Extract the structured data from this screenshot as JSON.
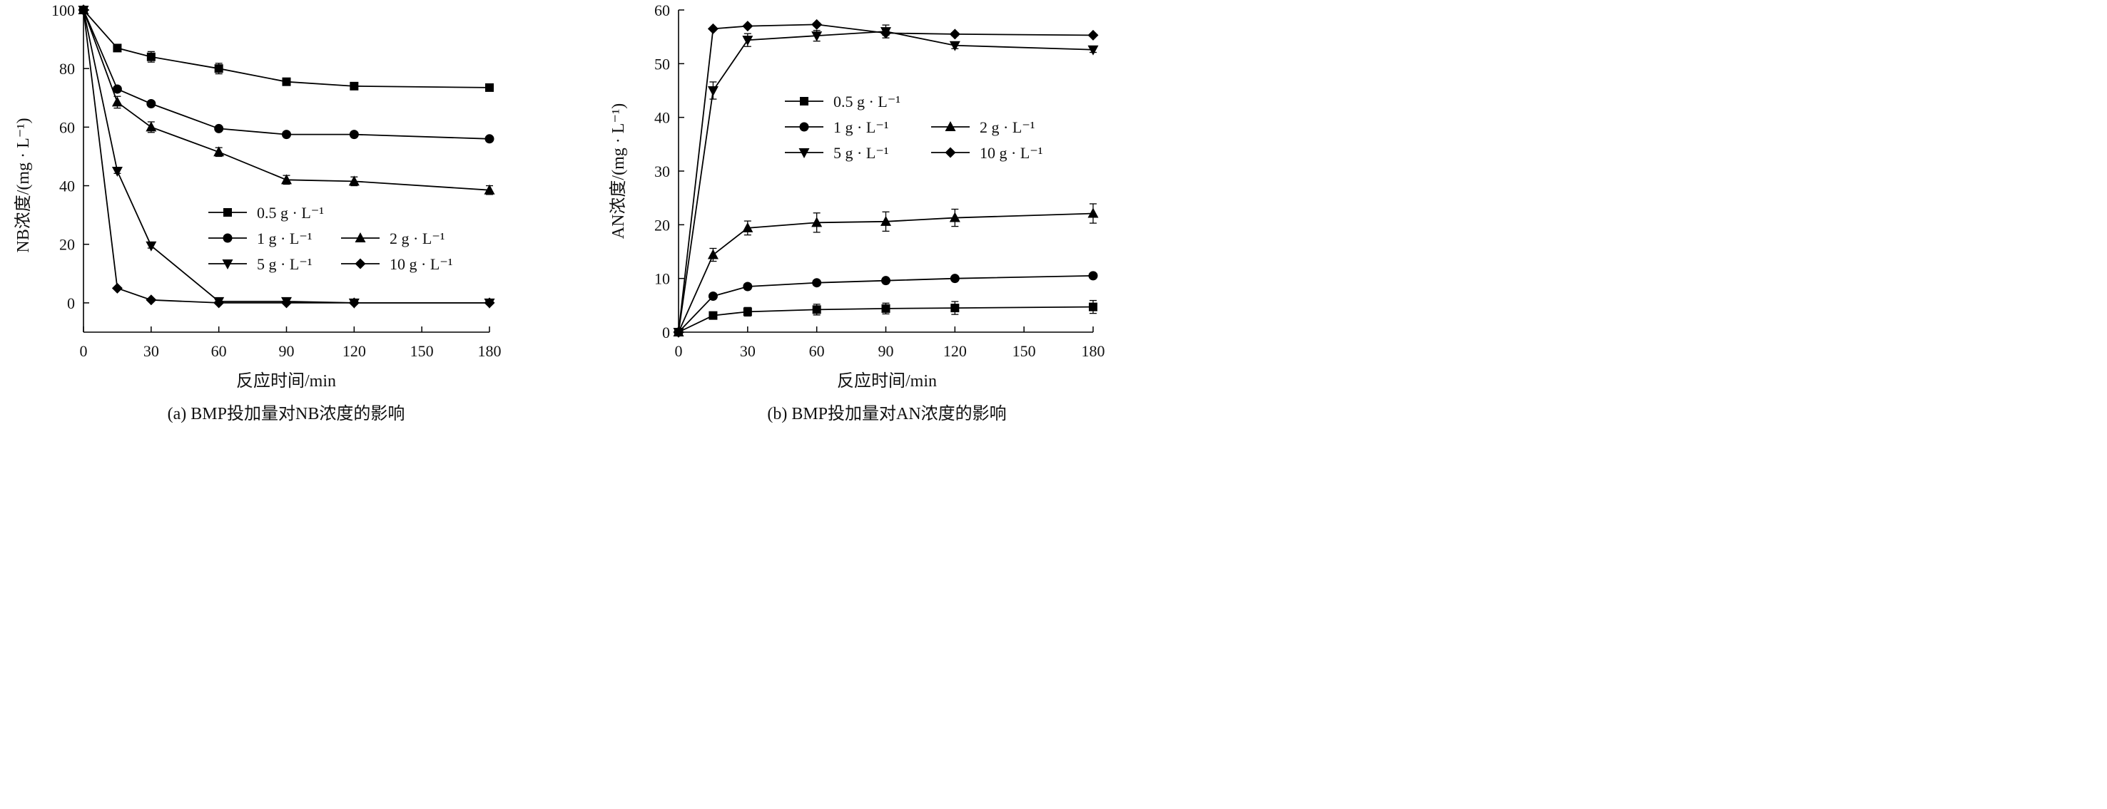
{
  "figures": [
    {
      "caption": "(a) BMP投加量对NB浓度的影响",
      "chart_data": {
        "type": "line",
        "xlabel": "反应时间/min",
        "ylabel": "NB浓度/(mg · L⁻¹)",
        "xlim": [
          0,
          180
        ],
        "ylim": [
          -10,
          100
        ],
        "xticks": [
          "0",
          "30",
          "60",
          "90",
          "120",
          "150",
          "180"
        ],
        "yticks": [
          "0",
          "20",
          "40",
          "60",
          "80",
          "100"
        ],
        "grid": false,
        "legend_position": "center-right",
        "x": [
          0,
          15,
          30,
          60,
          90,
          120,
          180
        ],
        "series": [
          {
            "name": "0.5 g · L⁻¹",
            "marker": "square",
            "values": [
              100,
              87,
              84,
              80,
              75.5,
              74,
              73.5
            ],
            "errors": [
              0,
              0.8,
              1.8,
              1.8,
              0.8,
              0.5,
              0.5
            ]
          },
          {
            "name": "1 g · L⁻¹",
            "marker": "circle",
            "values": [
              100,
              73,
              68,
              59.5,
              57.5,
              57.5,
              56
            ],
            "errors": [
              0,
              0.8,
              0.5,
              0.5,
              0.5,
              0.8,
              0.5
            ]
          },
          {
            "name": "2 g · L⁻¹",
            "marker": "triangle-up",
            "values": [
              100,
              68.5,
              60,
              51.5,
              42,
              41.5,
              38.5
            ],
            "errors": [
              0,
              2,
              1.8,
              1.5,
              1.5,
              1.5,
              1.5
            ]
          },
          {
            "name": "5 g · L⁻¹",
            "marker": "triangle-down",
            "values": [
              100,
              45,
              19.5,
              0.5,
              0.5,
              0,
              0
            ],
            "errors": [
              0,
              0.8,
              0.8,
              0.5,
              0.5,
              0,
              0
            ]
          },
          {
            "name": "10 g · L⁻¹",
            "marker": "diamond",
            "values": [
              100,
              5,
              1,
              0,
              0,
              0,
              0
            ],
            "errors": [
              0,
              0,
              0,
              0,
              0,
              0,
              0
            ]
          }
        ]
      }
    },
    {
      "caption": "(b) BMP投加量对AN浓度的影响",
      "chart_data": {
        "type": "line",
        "xlabel": "反应时间/min",
        "ylabel": "AN浓度/(mg · L⁻¹)",
        "xlim": [
          0,
          180
        ],
        "ylim": [
          0,
          60
        ],
        "xticks": [
          "0",
          "30",
          "60",
          "90",
          "120",
          "150",
          "180"
        ],
        "yticks": [
          "0",
          "10",
          "20",
          "30",
          "40",
          "50",
          "60"
        ],
        "grid": false,
        "legend_position": "upper-center",
        "x": [
          0,
          15,
          30,
          60,
          90,
          120,
          180
        ],
        "series": [
          {
            "name": "0.5 g · L⁻¹",
            "marker": "square",
            "values": [
              0,
              3.1,
              3.8,
              4.2,
              4.4,
              4.5,
              4.7
            ],
            "errors": [
              0,
              0.4,
              0.8,
              1,
              1,
              1.2,
              1.2
            ]
          },
          {
            "name": "1 g · L⁻¹",
            "marker": "circle",
            "values": [
              0,
              6.7,
              8.5,
              9.2,
              9.6,
              10,
              10.5
            ],
            "errors": [
              0,
              0.4,
              0.5,
              0.4,
              0.4,
              0.3,
              0.3
            ]
          },
          {
            "name": "2 g · L⁻¹",
            "marker": "triangle-up",
            "values": [
              0,
              14.4,
              19.4,
              20.4,
              20.6,
              21.3,
              22.1
            ],
            "errors": [
              0,
              1.2,
              1.3,
              1.8,
              1.8,
              1.6,
              1.8
            ]
          },
          {
            "name": "5 g · L⁻¹",
            "marker": "triangle-down",
            "values": [
              0,
              45,
              54.4,
              55.2,
              56,
              53.4,
              52.6
            ],
            "errors": [
              0,
              1.6,
              1.2,
              1,
              1.2,
              0.6,
              0.5
            ]
          },
          {
            "name": "10 g · L⁻¹",
            "marker": "diamond",
            "values": [
              0,
              56.5,
              57,
              57.3,
              55.7,
              55.5,
              55.3
            ],
            "errors": [
              0,
              0,
              0,
              0.3,
              0.4,
              0.3,
              0.2
            ]
          }
        ]
      }
    }
  ]
}
